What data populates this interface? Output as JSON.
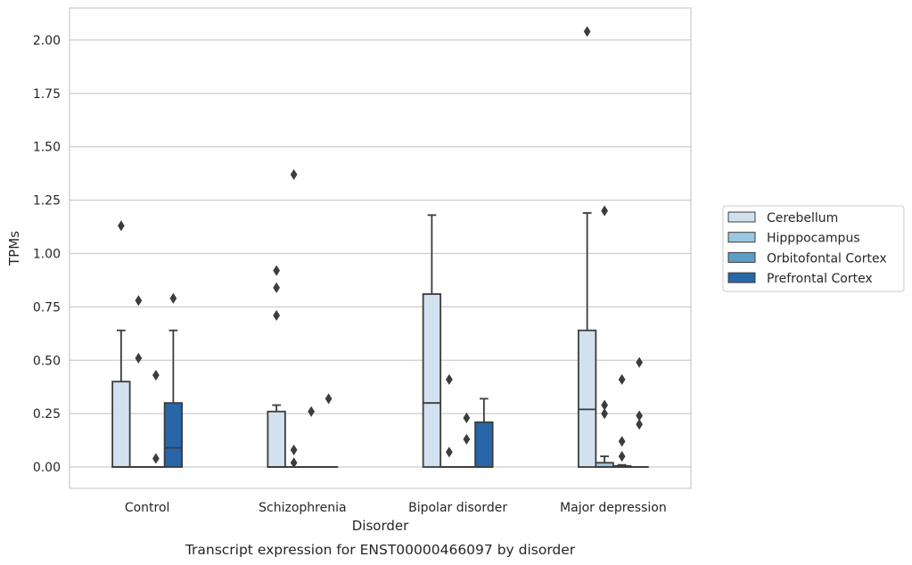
{
  "chart_data": {
    "type": "box",
    "title": "",
    "caption": "Transcript expression for ENST00000466097 by disorder",
    "xlabel": "Disorder",
    "ylabel": "TPMs",
    "ylim": [
      -0.1,
      2.15
    ],
    "yticks": [
      0.0,
      0.25,
      0.5,
      0.75,
      1.0,
      1.25,
      1.5,
      1.75,
      2.0
    ],
    "ytick_labels": [
      "0.00",
      "0.25",
      "0.50",
      "0.75",
      "1.00",
      "1.25",
      "1.50",
      "1.75",
      "2.00"
    ],
    "grid": "horizontal",
    "legend_position": "right",
    "categories": [
      "Control",
      "Schizophrenia",
      "Bipolar disorder",
      "Major depression"
    ],
    "series": [
      {
        "name": "Cerebellum",
        "color": "#d2e1f0",
        "boxes": [
          {
            "category": "Control",
            "min": 0.0,
            "q1": 0.0,
            "median": 0.0,
            "q3": 0.4,
            "max": 0.64,
            "outliers": [
              1.13
            ]
          },
          {
            "category": "Schizophrenia",
            "min": 0.0,
            "q1": 0.0,
            "median": 0.0,
            "q3": 0.26,
            "max": 0.29,
            "outliers": [
              0.92,
              0.84,
              0.71
            ]
          },
          {
            "category": "Bipolar disorder",
            "min": 0.0,
            "q1": 0.0,
            "median": 0.3,
            "q3": 0.81,
            "max": 1.18,
            "outliers": []
          },
          {
            "category": "Major depression",
            "min": 0.0,
            "q1": 0.0,
            "median": 0.27,
            "q3": 0.64,
            "max": 1.19,
            "outliers": [
              2.04
            ]
          }
        ]
      },
      {
        "name": "Hipppocampus",
        "color": "#9ac8e0",
        "boxes": [
          {
            "category": "Control",
            "min": 0.0,
            "q1": 0.0,
            "median": 0.0,
            "q3": 0.0,
            "max": 0.0,
            "outliers": [
              0.78,
              0.51
            ]
          },
          {
            "category": "Schizophrenia",
            "min": 0.0,
            "q1": 0.0,
            "median": 0.0,
            "q3": 0.0,
            "max": 0.0,
            "outliers": [
              1.37,
              0.08,
              0.02
            ]
          },
          {
            "category": "Bipolar disorder",
            "min": 0.0,
            "q1": 0.0,
            "median": 0.0,
            "q3": 0.0,
            "max": 0.0,
            "outliers": [
              0.41,
              0.07
            ]
          },
          {
            "category": "Major depression",
            "min": 0.0,
            "q1": 0.0,
            "median": 0.0,
            "q3": 0.02,
            "max": 0.05,
            "outliers": [
              1.2,
              0.29,
              0.25
            ]
          }
        ]
      },
      {
        "name": "Orbitofontal Cortex",
        "color": "#5a9ec9",
        "boxes": [
          {
            "category": "Control",
            "min": 0.0,
            "q1": 0.0,
            "median": 0.0,
            "q3": 0.0,
            "max": 0.0,
            "outliers": [
              0.43,
              0.04
            ]
          },
          {
            "category": "Schizophrenia",
            "min": 0.0,
            "q1": 0.0,
            "median": 0.0,
            "q3": 0.0,
            "max": 0.0,
            "outliers": [
              0.26
            ]
          },
          {
            "category": "Bipolar disorder",
            "min": 0.0,
            "q1": 0.0,
            "median": 0.0,
            "q3": 0.0,
            "max": 0.0,
            "outliers": [
              0.23,
              0.13
            ]
          },
          {
            "category": "Major depression",
            "min": 0.0,
            "q1": 0.0,
            "median": 0.0,
            "q3": 0.005,
            "max": 0.01,
            "outliers": [
              0.41,
              0.12,
              0.05
            ]
          }
        ]
      },
      {
        "name": "Prefrontal Cortex",
        "color": "#2866a8",
        "boxes": [
          {
            "category": "Control",
            "min": 0.0,
            "q1": 0.0,
            "median": 0.09,
            "q3": 0.3,
            "max": 0.64,
            "outliers": [
              0.79
            ]
          },
          {
            "category": "Schizophrenia",
            "min": 0.0,
            "q1": 0.0,
            "median": 0.0,
            "q3": 0.0,
            "max": 0.0,
            "outliers": [
              0.32
            ]
          },
          {
            "category": "Bipolar disorder",
            "min": 0.0,
            "q1": 0.0,
            "median": 0.0,
            "q3": 0.21,
            "max": 0.32,
            "outliers": []
          },
          {
            "category": "Major depression",
            "min": 0.0,
            "q1": 0.0,
            "median": 0.0,
            "q3": 0.0,
            "max": 0.0,
            "outliers": [
              0.49,
              0.24,
              0.2
            ]
          }
        ]
      }
    ]
  }
}
